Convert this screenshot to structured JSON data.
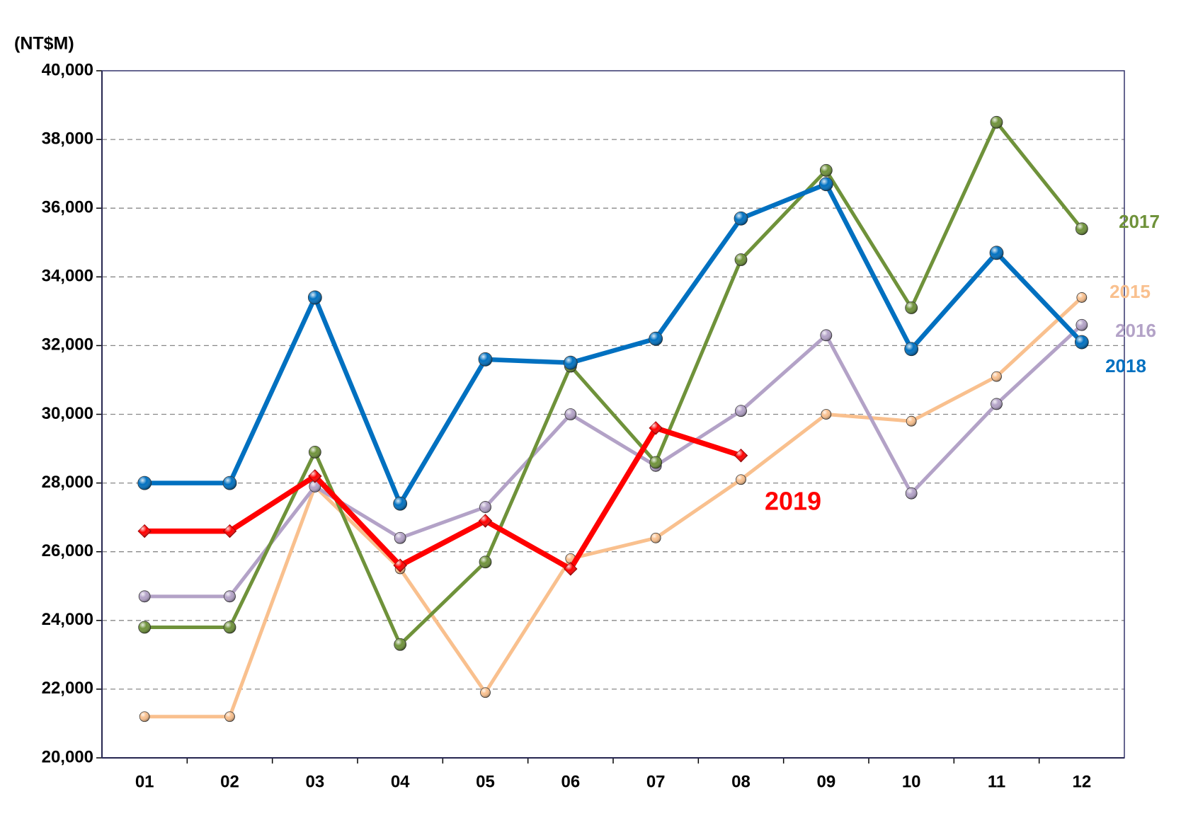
{
  "chart_data": {
    "type": "line",
    "y_label": "(NT$M)",
    "categories": [
      "01",
      "02",
      "03",
      "04",
      "05",
      "06",
      "07",
      "08",
      "09",
      "10",
      "11",
      "12"
    ],
    "series": [
      {
        "name": "2015",
        "color": "#f9c08e",
        "marker": "circle",
        "values": [
          21200,
          21200,
          27900,
          25500,
          21900,
          25800,
          26400,
          28100,
          30000,
          29800,
          31100,
          33400
        ]
      },
      {
        "name": "2016",
        "color": "#b3a2c7",
        "marker": "circle",
        "values": [
          24700,
          24700,
          27900,
          26400,
          27300,
          30000,
          28500,
          30100,
          32300,
          27700,
          30300,
          32600
        ]
      },
      {
        "name": "2017",
        "color": "#6f923a",
        "marker": "circle",
        "values": [
          23800,
          23800,
          28900,
          23300,
          25700,
          31400,
          28600,
          34500,
          37100,
          33100,
          38500,
          35400
        ]
      },
      {
        "name": "2018",
        "color": "#0070c0",
        "marker": "circle",
        "values": [
          28000,
          28000,
          33400,
          27400,
          31600,
          31500,
          32200,
          35700,
          36700,
          31900,
          34700,
          32100
        ]
      },
      {
        "name": "2019",
        "color": "#ff0000",
        "marker": "diamond",
        "values": [
          26600,
          26600,
          28200,
          25600,
          26900,
          25500,
          29600,
          28800,
          null,
          null,
          null,
          null
        ]
      }
    ],
    "ylim": [
      20000,
      40000
    ],
    "yticks": [
      {
        "value": 20000,
        "label": "20,000"
      },
      {
        "value": 22000,
        "label": "22,000"
      },
      {
        "value": 24000,
        "label": "24,000"
      },
      {
        "value": 26000,
        "label": "26,000"
      },
      {
        "value": 28000,
        "label": "28,000"
      },
      {
        "value": 30000,
        "label": "30,000"
      },
      {
        "value": 32000,
        "label": "32,000"
      },
      {
        "value": 34000,
        "label": "34,000"
      },
      {
        "value": 36000,
        "label": "36,000"
      },
      {
        "value": 38000,
        "label": "38,000"
      },
      {
        "value": 40000,
        "label": "40,000"
      }
    ],
    "grid": true
  }
}
